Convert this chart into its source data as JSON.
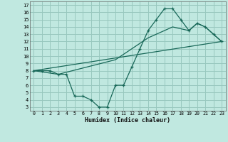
{
  "xlabel": "Humidex (Indice chaleur)",
  "xlim": [
    -0.5,
    23.5
  ],
  "ylim": [
    2.5,
    17.5
  ],
  "xticks": [
    0,
    1,
    2,
    3,
    4,
    5,
    6,
    7,
    8,
    9,
    10,
    11,
    12,
    13,
    14,
    15,
    16,
    17,
    18,
    19,
    20,
    21,
    22,
    23
  ],
  "yticks": [
    3,
    4,
    5,
    6,
    7,
    8,
    9,
    10,
    11,
    12,
    13,
    14,
    15,
    16,
    17
  ],
  "background_color": "#c0e8e0",
  "grid_color": "#98c8be",
  "line_color": "#186858",
  "line1_x": [
    0,
    1,
    2,
    3,
    4,
    5,
    6,
    7,
    8,
    9,
    10,
    11,
    12,
    13,
    14,
    15,
    16,
    17,
    18,
    19,
    20,
    21,
    22,
    23
  ],
  "line1_y": [
    8,
    8,
    8,
    7.5,
    7.5,
    4.5,
    4.5,
    4,
    3,
    3,
    6,
    6,
    8.5,
    11,
    13.5,
    15,
    16.5,
    16.5,
    15,
    13.5,
    14.5,
    14,
    13,
    12
  ],
  "line2_x": [
    0,
    23
  ],
  "line2_y": [
    8,
    12
  ],
  "line3_x": [
    0,
    3,
    10,
    14,
    17,
    19,
    20,
    21,
    23
  ],
  "line3_y": [
    8,
    7.5,
    9.5,
    12.5,
    14.0,
    13.5,
    14.5,
    14,
    12
  ]
}
